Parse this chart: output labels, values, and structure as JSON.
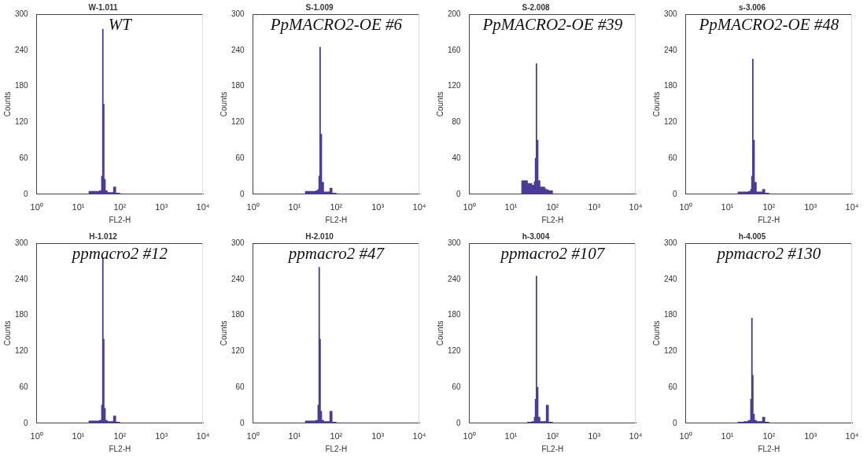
{
  "chart_data": [
    {
      "type": "histogram",
      "title": "W-1.011",
      "annotations": [
        "WT"
      ],
      "xlabel": "FL2-H",
      "ylabel": "Counts",
      "log": "x",
      "xlim": [
        1,
        10000
      ],
      "xticks": [
        {
          "value": 1,
          "label": "10⁰"
        },
        {
          "value": 10,
          "label": "10¹"
        },
        {
          "value": 100,
          "label": "10²"
        },
        {
          "value": 1000,
          "label": "10³"
        },
        {
          "value": 10000,
          "label": "10⁴"
        }
      ],
      "ylim": [
        0,
        300
      ],
      "yticks": [
        0,
        60,
        120,
        180,
        240,
        300
      ],
      "color": "#4b3a9a",
      "bins": [
        18,
        25,
        32,
        36,
        38,
        40,
        42,
        45,
        50,
        65,
        70,
        80,
        100,
        200,
        1000
      ],
      "values": [
        5,
        5,
        6,
        30,
        275,
        150,
        25,
        6,
        3,
        3,
        12,
        2,
        0,
        0
      ]
    },
    {
      "type": "histogram",
      "title": "S-1.009",
      "annotations": [
        "PpMACRO2-OE #6"
      ],
      "xlabel": "FL2-H",
      "ylabel": "Counts",
      "log": "x",
      "xlim": [
        1,
        10000
      ],
      "xticks": [
        {
          "value": 1,
          "label": "10⁰"
        },
        {
          "value": 10,
          "label": "10¹"
        },
        {
          "value": 100,
          "label": "10²"
        },
        {
          "value": 1000,
          "label": "10³"
        },
        {
          "value": 10000,
          "label": "10⁴"
        }
      ],
      "ylim": [
        0,
        300
      ],
      "yticks": [
        0,
        60,
        120,
        180,
        240,
        300
      ],
      "color": "#4b3a9a",
      "bins": [
        18,
        25,
        32,
        36,
        38,
        40,
        42,
        45,
        50,
        65,
        70,
        80,
        100,
        200,
        1000
      ],
      "values": [
        5,
        5,
        6,
        8,
        30,
        245,
        100,
        20,
        4,
        4,
        10,
        2,
        0,
        0
      ]
    },
    {
      "type": "histogram",
      "title": "S-2.008",
      "annotations": [
        "PpMACRO2-OE #39"
      ],
      "xlabel": "FL2-H",
      "ylabel": "Counts",
      "log": "x",
      "xlim": [
        1,
        10000
      ],
      "xticks": [
        {
          "value": 1,
          "label": "10⁰"
        },
        {
          "value": 10,
          "label": "10¹"
        },
        {
          "value": 100,
          "label": "10²"
        },
        {
          "value": 1000,
          "label": "10³"
        },
        {
          "value": 10000,
          "label": "10⁴"
        }
      ],
      "ylim": [
        0,
        200
      ],
      "yticks": [
        0,
        40,
        80,
        120,
        160,
        200
      ],
      "color": "#4b3a9a",
      "bins": [
        18,
        25,
        32,
        36,
        38,
        40,
        42,
        45,
        50,
        65,
        70,
        80,
        100,
        200,
        1000
      ],
      "values": [
        15,
        12,
        10,
        14,
        40,
        145,
        60,
        15,
        8,
        6,
        5,
        4,
        0,
        0
      ]
    },
    {
      "type": "histogram",
      "title": "s-3.006",
      "annotations": [
        "PpMACRO2-OE #48"
      ],
      "xlabel": "FL2-H",
      "ylabel": "Counts",
      "log": "x",
      "xlim": [
        1,
        10000
      ],
      "xticks": [
        {
          "value": 1,
          "label": "10⁰"
        },
        {
          "value": 10,
          "label": "10¹"
        },
        {
          "value": 100,
          "label": "10²"
        },
        {
          "value": 1000,
          "label": "10³"
        },
        {
          "value": 10000,
          "label": "10⁴"
        }
      ],
      "ylim": [
        0,
        300
      ],
      "yticks": [
        0,
        60,
        120,
        180,
        240,
        300
      ],
      "color": "#4b3a9a",
      "bins": [
        18,
        25,
        32,
        36,
        38,
        40,
        42,
        45,
        50,
        65,
        70,
        80,
        100,
        200,
        1000
      ],
      "values": [
        4,
        4,
        5,
        8,
        30,
        225,
        90,
        20,
        4,
        4,
        8,
        2,
        0,
        0
      ]
    },
    {
      "type": "histogram",
      "title": "H-1.012",
      "annotations": [
        "ppmacro2 #12"
      ],
      "xlabel": "FL2-H",
      "ylabel": "Counts",
      "log": "x",
      "xlim": [
        1,
        10000
      ],
      "xticks": [
        {
          "value": 1,
          "label": "10⁰"
        },
        {
          "value": 10,
          "label": "10¹"
        },
        {
          "value": 100,
          "label": "10²"
        },
        {
          "value": 1000,
          "label": "10³"
        },
        {
          "value": 10000,
          "label": "10⁴"
        }
      ],
      "ylim": [
        0,
        300
      ],
      "yticks": [
        0,
        60,
        120,
        180,
        240,
        300
      ],
      "color": "#4b3a9a",
      "bins": [
        18,
        25,
        32,
        36,
        38,
        40,
        42,
        45,
        50,
        65,
        70,
        80,
        100,
        200,
        1000
      ],
      "values": [
        4,
        4,
        5,
        30,
        275,
        140,
        25,
        5,
        3,
        3,
        12,
        2,
        0,
        0
      ]
    },
    {
      "type": "histogram",
      "title": "H-2.010",
      "annotations": [
        "ppmacro2 #47"
      ],
      "xlabel": "FL2-H",
      "ylabel": "Counts",
      "log": "x",
      "xlim": [
        1,
        10000
      ],
      "xticks": [
        {
          "value": 1,
          "label": "10⁰"
        },
        {
          "value": 10,
          "label": "10¹"
        },
        {
          "value": 100,
          "label": "10²"
        },
        {
          "value": 1000,
          "label": "10³"
        },
        {
          "value": 10000,
          "label": "10⁴"
        }
      ],
      "ylim": [
        0,
        300
      ],
      "yticks": [
        0,
        60,
        120,
        180,
        240,
        300
      ],
      "color": "#4b3a9a",
      "bins": [
        18,
        25,
        32,
        36,
        38,
        40,
        42,
        45,
        50,
        65,
        70,
        80,
        100,
        200,
        1000
      ],
      "values": [
        4,
        4,
        5,
        30,
        260,
        140,
        20,
        5,
        3,
        3,
        20,
        2,
        0,
        0
      ]
    },
    {
      "type": "histogram",
      "title": "h-3.004",
      "annotations": [
        "ppmacro2 #107"
      ],
      "xlabel": "FL2-H",
      "ylabel": "Counts",
      "log": "x",
      "xlim": [
        1,
        10000
      ],
      "xticks": [
        {
          "value": 1,
          "label": "10⁰"
        },
        {
          "value": 10,
          "label": "10¹"
        },
        {
          "value": 100,
          "label": "10²"
        },
        {
          "value": 1000,
          "label": "10³"
        },
        {
          "value": 10000,
          "label": "10⁴"
        }
      ],
      "ylim": [
        0,
        300
      ],
      "yticks": [
        0,
        60,
        120,
        180,
        240,
        300
      ],
      "color": "#4b3a9a",
      "bins": [
        18,
        25,
        32,
        36,
        38,
        40,
        42,
        45,
        50,
        65,
        70,
        80,
        100,
        200,
        1000
      ],
      "values": [
        0,
        2,
        3,
        10,
        40,
        245,
        60,
        10,
        3,
        3,
        30,
        2,
        0,
        0
      ]
    },
    {
      "type": "histogram",
      "title": "h-4.005",
      "annotations": [
        "ppmacro2 #130"
      ],
      "xlabel": "FL2-H",
      "ylabel": "Counts",
      "log": "x",
      "xlim": [
        1,
        10000
      ],
      "xticks": [
        {
          "value": 1,
          "label": "10⁰"
        },
        {
          "value": 10,
          "label": "10¹"
        },
        {
          "value": 100,
          "label": "10²"
        },
        {
          "value": 1000,
          "label": "10³"
        },
        {
          "value": 10000,
          "label": "10⁴"
        }
      ],
      "ylim": [
        0,
        300
      ],
      "yticks": [
        0,
        60,
        120,
        180,
        240,
        300
      ],
      "color": "#4b3a9a",
      "bins": [
        18,
        25,
        32,
        36,
        38,
        40,
        42,
        45,
        50,
        65,
        70,
        80,
        100,
        200,
        1000
      ],
      "values": [
        2,
        3,
        5,
        40,
        175,
        80,
        15,
        5,
        3,
        3,
        10,
        2,
        0,
        0
      ]
    }
  ]
}
